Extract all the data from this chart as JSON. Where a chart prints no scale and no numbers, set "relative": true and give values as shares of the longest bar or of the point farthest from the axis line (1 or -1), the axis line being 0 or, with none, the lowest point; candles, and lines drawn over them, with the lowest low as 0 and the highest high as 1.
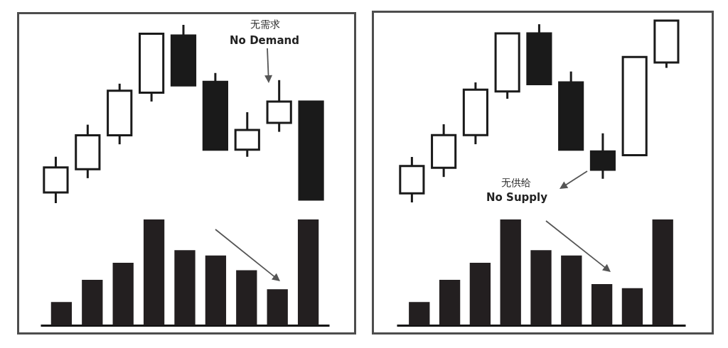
{
  "chart_data": [
    {
      "type": "candlestick",
      "relative": true,
      "categories": [
        null,
        null,
        null,
        null,
        null,
        null,
        null,
        null,
        null
      ],
      "ohlc": [
        [
          0.06,
          0.26,
          0,
          0.2
        ],
        [
          0.19,
          0.44,
          0.14,
          0.38
        ],
        [
          0.38,
          0.67,
          0.33,
          0.63
        ],
        [
          0.62,
          0.95,
          0.57,
          0.95
        ],
        [
          0.94,
          1,
          0.66,
          0.66
        ],
        [
          0.68,
          0.73,
          0.3,
          0.3
        ],
        [
          0.3,
          0.51,
          0.26,
          0.41
        ],
        [
          0.45,
          0.69,
          0.4,
          0.57
        ],
        [
          0.57,
          0.57,
          0.02,
          0.02
        ]
      ],
      "color": "#1a1a1a",
      "colors": [
        "#ffffff",
        "#ffffff",
        "#ffffff",
        "#ffffff",
        "#1a1a1a",
        "#1a1a1a",
        "#ffffff",
        "#ffffff",
        "#1a1a1a"
      ],
      "annotations": [
        "无需求",
        "No Demand"
      ]
    },
    {
      "type": "bar",
      "relative": true,
      "categories": [
        null,
        null,
        null,
        null,
        null,
        null,
        null,
        null,
        null
      ],
      "values": [
        0.22,
        0.43,
        0.59,
        1,
        0.71,
        0.66,
        0.52,
        0.34,
        1
      ],
      "color": "#231f20"
    },
    {
      "type": "candlestick",
      "relative": true,
      "categories": [
        null,
        null,
        null,
        null,
        null,
        null,
        null,
        null,
        null
      ],
      "ohlc": [
        [
          0.05,
          0.25,
          0,
          0.2
        ],
        [
          0.19,
          0.43,
          0.14,
          0.37
        ],
        [
          0.37,
          0.66,
          0.32,
          0.62
        ],
        [
          0.61,
          0.93,
          0.57,
          0.93
        ],
        [
          0.93,
          0.98,
          0.65,
          0.65
        ],
        [
          0.66,
          0.72,
          0.29,
          0.29
        ],
        [
          0.28,
          0.38,
          0.13,
          0.18
        ],
        [
          0.26,
          0.8,
          0.26,
          0.8
        ],
        [
          0.77,
          1,
          0.74,
          1
        ]
      ],
      "color": "#1a1a1a",
      "colors": [
        "#ffffff",
        "#ffffff",
        "#ffffff",
        "#ffffff",
        "#1a1a1a",
        "#1a1a1a",
        "#1a1a1a",
        "#ffffff",
        "#ffffff"
      ],
      "annotations": [
        "无供给",
        "No Supply"
      ]
    },
    {
      "type": "bar",
      "relative": true,
      "categories": [
        null,
        null,
        null,
        null,
        null,
        null,
        null,
        null,
        null
      ],
      "values": [
        0.22,
        0.43,
        0.59,
        1,
        0.71,
        0.66,
        0.39,
        0.35,
        1
      ],
      "color": "#231f20"
    }
  ]
}
